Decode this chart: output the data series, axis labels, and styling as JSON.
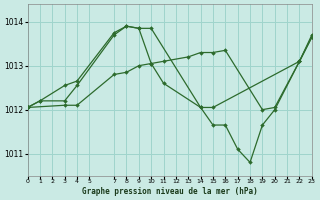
{
  "bg_color": "#caeae4",
  "grid_color": "#9fd4cc",
  "line_color": "#2d6b2d",
  "title": "Graphe pression niveau de la mer (hPa)",
  "xlim": [
    0,
    23
  ],
  "ylim": [
    1010.5,
    1014.4
  ],
  "yticks": [
    1011,
    1012,
    1013,
    1014
  ],
  "xtick_vals": [
    0,
    1,
    2,
    3,
    4,
    5,
    7,
    8,
    9,
    10,
    11,
    12,
    13,
    14,
    15,
    16,
    17,
    18,
    19,
    20,
    21,
    22,
    23
  ],
  "series": [
    {
      "x": [
        0,
        1,
        3,
        4,
        7,
        8,
        9,
        10,
        11,
        14,
        15,
        22,
        23
      ],
      "y": [
        1012.05,
        1012.2,
        1012.55,
        1012.65,
        1013.75,
        1013.9,
        1013.85,
        1013.05,
        1012.6,
        1012.05,
        1012.05,
        1013.1,
        1013.7
      ]
    },
    {
      "x": [
        0,
        3,
        4,
        7,
        8,
        9,
        10,
        11,
        13,
        14,
        15,
        16,
        19,
        20,
        22,
        23
      ],
      "y": [
        1012.05,
        1012.1,
        1012.1,
        1012.8,
        1012.85,
        1013.0,
        1013.05,
        1013.1,
        1013.2,
        1013.3,
        1013.3,
        1013.35,
        1012.0,
        1012.05,
        1013.1,
        1013.65
      ]
    },
    {
      "x": [
        0,
        1,
        3,
        4,
        7,
        8,
        9,
        10,
        14,
        15,
        16,
        17,
        18,
        19,
        20,
        22,
        23
      ],
      "y": [
        1012.05,
        1012.2,
        1012.2,
        1012.55,
        1013.7,
        1013.9,
        1013.85,
        1013.85,
        1012.05,
        1011.65,
        1011.65,
        1011.1,
        1010.8,
        1011.65,
        1012.0,
        1013.1,
        1013.65
      ]
    }
  ]
}
